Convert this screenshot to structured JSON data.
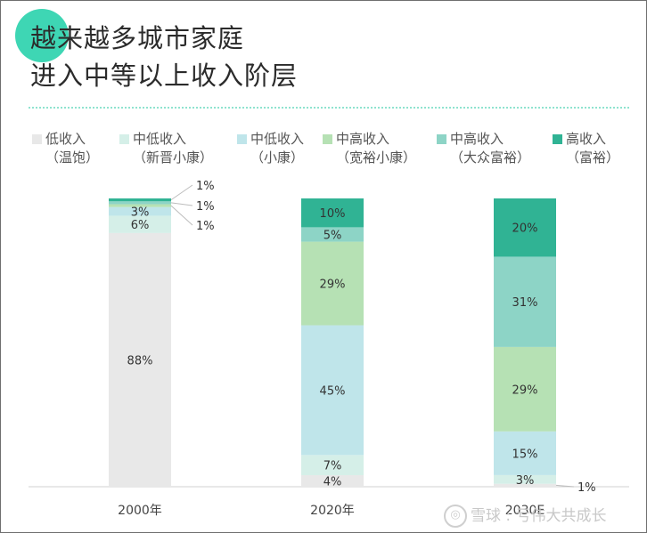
{
  "title_lines": [
    "越来越多城市家庭",
    "进入中等以上收入阶层"
  ],
  "watermark": "雪球 : 亏伟大共成长",
  "chart_data": {
    "type": "bar",
    "stacked": true,
    "categories": [
      "2000年",
      "2020年",
      "2030E"
    ],
    "series": [
      {
        "name": "低收入（温饱）",
        "line1": "低收入",
        "line2": "（温饱）",
        "color": "#e8e8e8",
        "values": [
          88,
          4,
          1
        ]
      },
      {
        "name": "中低收入（新晋小康）",
        "line1": "中低收入",
        "line2": "（新晋小康）",
        "color": "#d5efe8",
        "values": [
          6,
          7,
          3
        ]
      },
      {
        "name": "中低收入（小康）",
        "line1": "中低收入",
        "line2": "（小康）",
        "color": "#bfe5ea",
        "values": [
          3,
          45,
          15
        ]
      },
      {
        "name": "中高收入（宽裕小康）",
        "line1": "中高收入",
        "line2": "（宽裕小康）",
        "color": "#b6e1b4",
        "values": [
          1,
          29,
          29
        ]
      },
      {
        "name": "中高收入（大众富裕）",
        "line1": "中高收入",
        "line2": "（大众富裕）",
        "color": "#8dd4c6",
        "values": [
          1,
          5,
          31
        ]
      },
      {
        "name": "高收入（富裕）",
        "line1": "高收入",
        "line2": "（富裕）",
        "color": "#30b394",
        "values": [
          1,
          10,
          20
        ]
      }
    ],
    "labels": [
      [
        "88%",
        "6%",
        "3%",
        "1%",
        "1%",
        "1%"
      ],
      [
        "4%",
        "7%",
        "45%",
        "29%",
        "5%",
        "10%"
      ],
      [
        "1%",
        "3%",
        "15%",
        "29%",
        "31%",
        "20%"
      ]
    ],
    "callouts": [
      {
        "category": 0,
        "series": 5,
        "text": "1%"
      },
      {
        "category": 0,
        "series": 4,
        "text": "1%"
      },
      {
        "category": 0,
        "series": 3,
        "text": "1%"
      },
      {
        "category": 2,
        "series": 0,
        "text": "1%"
      }
    ],
    "ylim": [
      0,
      100
    ],
    "legend": "top",
    "grid": false
  }
}
